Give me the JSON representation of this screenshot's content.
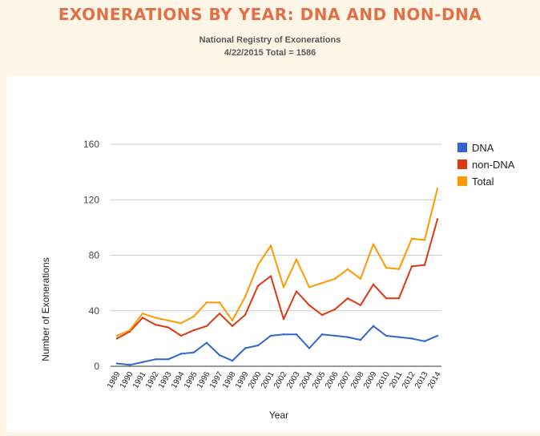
{
  "header": {
    "title": "EXONERATIONS BY YEAR: DNA AND NON-DNA",
    "source": "National Registry of Exonerations",
    "date_total": "4/22/2015 Total = 1586"
  },
  "chart_data": {
    "type": "line",
    "title": "EXONERATIONS BY YEAR: DNA AND NON-DNA",
    "xlabel": "Year",
    "ylabel": "Number of Exonerations",
    "ylim": [
      0,
      160
    ],
    "yticks": [
      0,
      40,
      80,
      120,
      160
    ],
    "grid": true,
    "legend": "right",
    "categories": [
      "1989",
      "1990",
      "1991",
      "1992",
      "1993",
      "1994",
      "1995",
      "1996",
      "1997",
      "1998",
      "1999",
      "2000",
      "2001",
      "2002",
      "2003",
      "2004",
      "2005",
      "2006",
      "2007",
      "2008",
      "2009",
      "2010",
      "2011",
      "2012",
      "2013",
      "2014"
    ],
    "series": [
      {
        "name": "DNA",
        "color": "#3366cc",
        "values": [
          2,
          1,
          3,
          5,
          5,
          9,
          10,
          17,
          8,
          4,
          13,
          15,
          22,
          23,
          23,
          13,
          23,
          22,
          21,
          19,
          29,
          22,
          21,
          20,
          18,
          22
        ]
      },
      {
        "name": "non-DNA",
        "color": "#dc3912",
        "values": [
          20,
          25,
          35,
          30,
          28,
          22,
          26,
          29,
          38,
          29,
          37,
          58,
          65,
          34,
          54,
          44,
          37,
          41,
          49,
          44,
          59,
          49,
          49,
          72,
          73,
          106
        ]
      },
      {
        "name": "Total",
        "color": "#ff9900",
        "values": [
          22,
          26,
          38,
          35,
          33,
          31,
          36,
          46,
          46,
          33,
          50,
          73,
          87,
          57,
          77,
          57,
          60,
          63,
          70,
          63,
          88,
          71,
          70,
          92,
          91,
          128
        ]
      }
    ]
  }
}
